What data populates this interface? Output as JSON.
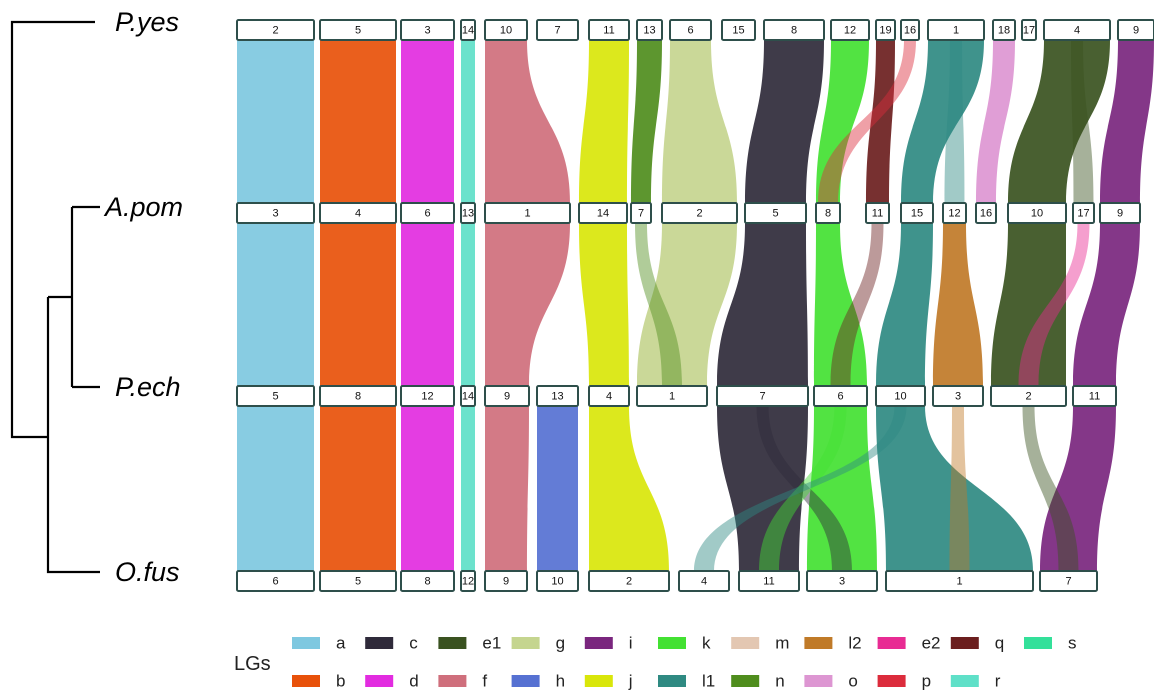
{
  "species": [
    "P.yes",
    "A.pom",
    "P.ech",
    "O.fus"
  ],
  "rows": [
    {
      "species": "P.yes",
      "chromosomes": [
        {
          "label": "2",
          "lg": "a"
        },
        {
          "label": "5",
          "lg": "b"
        },
        {
          "label": "3",
          "lg": "d"
        },
        {
          "label": "14",
          "lg": "r"
        },
        {
          "label": "10",
          "lg": "f"
        },
        {
          "label": "7",
          "lg": "h"
        },
        {
          "label": "11",
          "lg": "j"
        },
        {
          "label": "13",
          "lg": "n"
        },
        {
          "label": "6",
          "lg": "g"
        },
        {
          "label": "15",
          "lg": "m"
        },
        {
          "label": "8",
          "lg": "c"
        },
        {
          "label": "12",
          "lg": "k"
        },
        {
          "label": "19",
          "lg": "q"
        },
        {
          "label": "16",
          "lg": "p"
        },
        {
          "label": "1",
          "lg": "l1"
        },
        {
          "label": "18",
          "lg": "o"
        },
        {
          "label": "17",
          "lg": "s"
        },
        {
          "label": "4",
          "lg": "e1"
        },
        {
          "label": "9",
          "lg": "i"
        }
      ]
    },
    {
      "species": "A.pom",
      "chromosomes": [
        {
          "label": "3",
          "lg": "a"
        },
        {
          "label": "4",
          "lg": "b"
        },
        {
          "label": "6",
          "lg": "d"
        },
        {
          "label": "13",
          "lg": "r"
        },
        {
          "label": "1",
          "lg": "f"
        },
        {
          "label": "14",
          "lg": "j"
        },
        {
          "label": "7",
          "lg": "n"
        },
        {
          "label": "2",
          "lg": "g"
        },
        {
          "label": "5",
          "lg": "c"
        },
        {
          "label": "8",
          "lg": "k"
        },
        {
          "label": "11",
          "lg": "q"
        },
        {
          "label": "15",
          "lg": "l1"
        },
        {
          "label": "12",
          "lg": "l2"
        },
        {
          "label": "16",
          "lg": "o"
        },
        {
          "label": "10",
          "lg": "e1"
        },
        {
          "label": "17",
          "lg": "e2"
        },
        {
          "label": "9",
          "lg": "i"
        }
      ]
    },
    {
      "species": "P.ech",
      "chromosomes": [
        {
          "label": "5",
          "lg": "a"
        },
        {
          "label": "8",
          "lg": "b"
        },
        {
          "label": "12",
          "lg": "d"
        },
        {
          "label": "14",
          "lg": "r"
        },
        {
          "label": "9",
          "lg": "f"
        },
        {
          "label": "13",
          "lg": "h"
        },
        {
          "label": "4",
          "lg": "j"
        },
        {
          "label": "1",
          "lg": "g"
        },
        {
          "label": "7",
          "lg": "c"
        },
        {
          "label": "6",
          "lg": "k"
        },
        {
          "label": "10",
          "lg": "l1"
        },
        {
          "label": "3",
          "lg": "l2"
        },
        {
          "label": "2",
          "lg": "e1"
        },
        {
          "label": "11",
          "lg": "i"
        }
      ]
    },
    {
      "species": "O.fus",
      "chromosomes": [
        {
          "label": "6",
          "lg": "a"
        },
        {
          "label": "5",
          "lg": "b"
        },
        {
          "label": "8",
          "lg": "d"
        },
        {
          "label": "12",
          "lg": "r"
        },
        {
          "label": "9",
          "lg": "f"
        },
        {
          "label": "10",
          "lg": "h"
        },
        {
          "label": "2",
          "lg": "j"
        },
        {
          "label": "4",
          "lg": "n"
        },
        {
          "label": "11",
          "lg": "c"
        },
        {
          "label": "3",
          "lg": "k"
        },
        {
          "label": "1",
          "lg": "l1"
        },
        {
          "label": "7",
          "lg": "i"
        }
      ]
    }
  ],
  "legend": {
    "title": "LGs",
    "items": [
      {
        "name": "a",
        "color": "#7ec8e0"
      },
      {
        "name": "c",
        "color": "#2f2a3a"
      },
      {
        "name": "e1",
        "color": "#3a5220"
      },
      {
        "name": "g",
        "color": "#c5d58f"
      },
      {
        "name": "i",
        "color": "#7a267e"
      },
      {
        "name": "k",
        "color": "#43e132"
      },
      {
        "name": "m",
        "color": "#e3c7b2"
      },
      {
        "name": "l2",
        "color": "#c07a28"
      },
      {
        "name": "e2",
        "color": "#e82b93"
      },
      {
        "name": "q",
        "color": "#6b1e1e"
      },
      {
        "name": "s",
        "color": "#33e09a"
      },
      {
        "name": "b",
        "color": "#e8510a"
      },
      {
        "name": "d",
        "color": "#e22ce0"
      },
      {
        "name": "f",
        "color": "#cf6f7c"
      },
      {
        "name": "h",
        "color": "#5671d2"
      },
      {
        "name": "j",
        "color": "#d9e60a"
      },
      {
        "name": "l1",
        "color": "#2f8a82"
      },
      {
        "name": "n",
        "color": "#4f8d1d"
      },
      {
        "name": "o",
        "color": "#dd96d2"
      },
      {
        "name": "p",
        "color": "#dc2c3c"
      },
      {
        "name": "r",
        "color": "#5fe0c8"
      }
    ]
  }
}
